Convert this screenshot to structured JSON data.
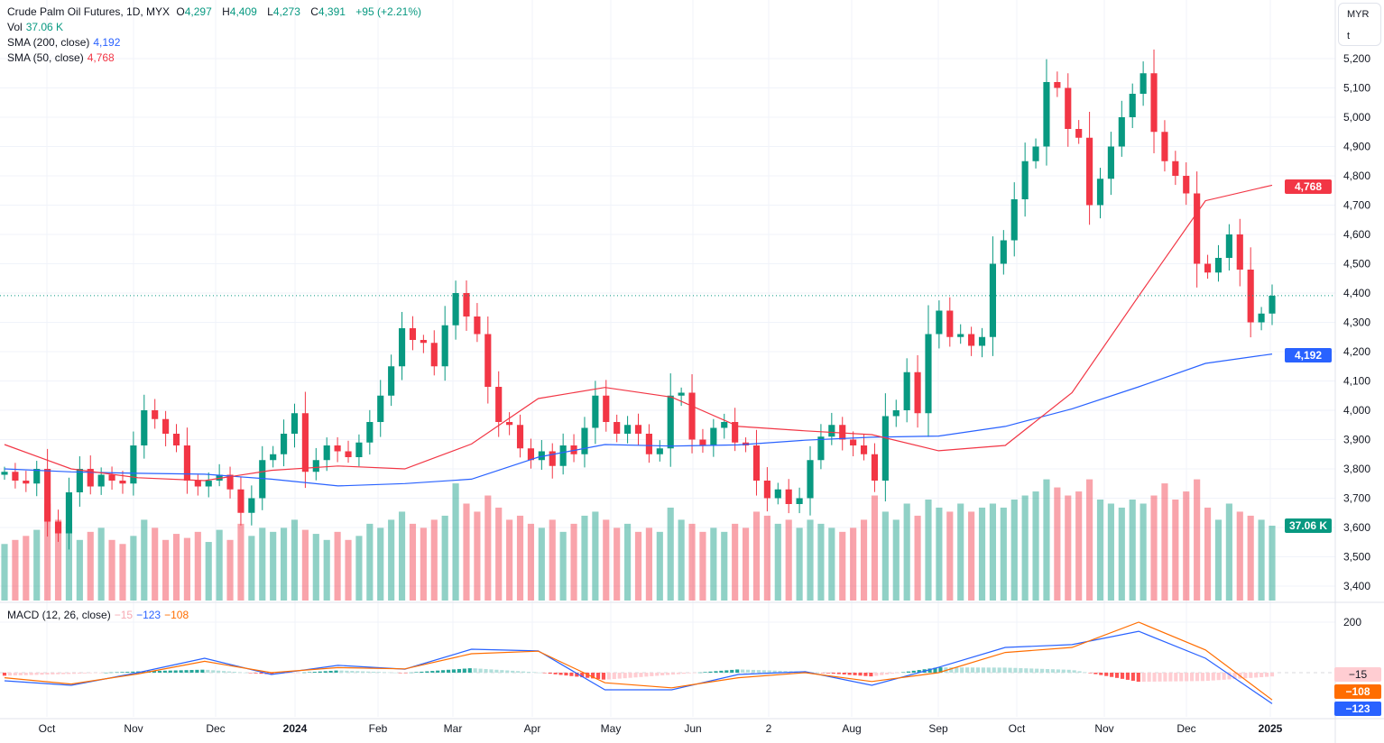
{
  "header": {
    "symbol": "Crude Palm Oil Futures, 1D, MYX",
    "open_label": "O",
    "open": "4,297",
    "high_label": "H",
    "high": "4,409",
    "low_label": "L",
    "low": "4,273",
    "close_label": "C",
    "close": "4,391",
    "change": "+95 (+2.21%)"
  },
  "indicators": {
    "vol_label": "Vol",
    "vol_value": "37.06 K",
    "sma200_label": "SMA (200, close)",
    "sma200_value": "4,192",
    "sma50_label": "SMA (50, close)",
    "sma50_value": "4,768",
    "macd_label": "MACD (12, 26, close)",
    "macd_hist": "−15",
    "macd_line": "−123",
    "macd_signal": "−108"
  },
  "price_axis": {
    "currency": "MYR",
    "unit": "t",
    "ticks": [
      "5,200",
      "5,100",
      "5,000",
      "4,900",
      "4,800",
      "4,700",
      "4,600",
      "4,500",
      "4,400",
      "4,300",
      "4,200",
      "4,100",
      "4,000",
      "3,900",
      "3,800",
      "3,700",
      "3,600",
      "3,500",
      "3,400"
    ],
    "tags": {
      "sma50": "4,768",
      "sma200": "4,192",
      "volume": "37.06 K",
      "macd_hist": "−15",
      "macd_signal": "−108",
      "macd_line": "−123"
    },
    "macd_tick": "200"
  },
  "time_axis": {
    "labels": [
      "Oct",
      "Nov",
      "Dec",
      "2024",
      "Feb",
      "Mar",
      "Apr",
      "May",
      "Jun",
      "2",
      "Aug",
      "Sep",
      "Oct",
      "Nov",
      "Dec",
      "2025"
    ]
  },
  "colors": {
    "up": "#089981",
    "down": "#f23645",
    "sma200": "#2962ff",
    "sma50": "#f23645",
    "macd": "#2962ff",
    "signal": "#ff6d00"
  },
  "chart_data": {
    "type": "candlestick",
    "title": "Crude Palm Oil Futures, 1D, MYX",
    "ylim": [
      3400,
      5200
    ],
    "last_price": 4391,
    "closes": [
      3790,
      3760,
      3750,
      3800,
      3620,
      3580,
      3720,
      3800,
      3740,
      3780,
      3760,
      3750,
      3880,
      4000,
      3970,
      3920,
      3880,
      3760,
      3740,
      3760,
      3780,
      3730,
      3650,
      3700,
      3830,
      3850,
      3920,
      3990,
      3790,
      3830,
      3880,
      3860,
      3840,
      3890,
      3960,
      4050,
      4150,
      4280,
      4240,
      4230,
      4150,
      4290,
      4400,
      4320,
      4260,
      4080,
      3960,
      3950,
      3870,
      3830,
      3860,
      3810,
      3880,
      3850,
      3940,
      4050,
      3960,
      3920,
      3950,
      3920,
      3850,
      3870,
      4050,
      4060,
      3900,
      3880,
      3940,
      3960,
      3890,
      3880,
      3760,
      3700,
      3730,
      3680,
      3700,
      3830,
      3910,
      3950,
      3900,
      3880,
      3850,
      3760,
      3980,
      4000,
      4130,
      3990,
      4260,
      4340,
      4250,
      4260,
      4220,
      4250,
      4500,
      4580,
      4720,
      4850,
      4900,
      5120,
      5100,
      4960,
      4930,
      4700,
      4790,
      4900,
      5000,
      5080,
      5150,
      4950,
      4850,
      4800,
      4740,
      4500,
      4470,
      4520,
      4600,
      4480,
      4300,
      4330,
      4391
    ],
    "volume_k": [
      28,
      30,
      32,
      35,
      48,
      40,
      38,
      30,
      34,
      36,
      30,
      28,
      32,
      40,
      36,
      30,
      33,
      31,
      34,
      29,
      35,
      30,
      38,
      32,
      36,
      34,
      36,
      40,
      35,
      33,
      30,
      34,
      30,
      32,
      38,
      36,
      40,
      44,
      38,
      36,
      40,
      42,
      58,
      48,
      44,
      52,
      46,
      40,
      42,
      38,
      36,
      40,
      34,
      38,
      42,
      44,
      40,
      36,
      38,
      34,
      36,
      34,
      46,
      40,
      38,
      34,
      36,
      34,
      38,
      36,
      44,
      42,
      38,
      40,
      36,
      40,
      38,
      36,
      34,
      36,
      40,
      52,
      44,
      40,
      48,
      42,
      50,
      46,
      44,
      48,
      44,
      46,
      48,
      46,
      50,
      52,
      54,
      60,
      56,
      52,
      54,
      60,
      50,
      48,
      46,
      50,
      48,
      52,
      58,
      50,
      54,
      60,
      46,
      40,
      48,
      44,
      42,
      40,
      37.06
    ],
    "sma200": [
      3800,
      3790,
      3785,
      3782,
      3765,
      3742,
      3750,
      3765,
      3840,
      3883,
      3878,
      3882,
      3898,
      3908,
      3912,
      3945,
      4005,
      4080,
      4160,
      4192
    ],
    "sma50": [
      3883,
      3800,
      3770,
      3760,
      3795,
      3810,
      3800,
      3885,
      4040,
      4078,
      4045,
      3945,
      3930,
      3917,
      3862,
      3880,
      4060,
      4390,
      4715,
      4768
    ],
    "macd": [
      -32,
      -50,
      0,
      57,
      -7,
      29,
      14,
      93,
      86,
      -68,
      -68,
      -7,
      4,
      -50,
      21,
      100,
      111,
      164,
      57,
      -123
    ],
    "macd_signal": [
      -20,
      -45,
      -5,
      45,
      0,
      20,
      15,
      75,
      85,
      -40,
      -60,
      -20,
      0,
      -35,
      0,
      80,
      100,
      200,
      90,
      -108
    ],
    "macd_ylim_label": 200
  }
}
